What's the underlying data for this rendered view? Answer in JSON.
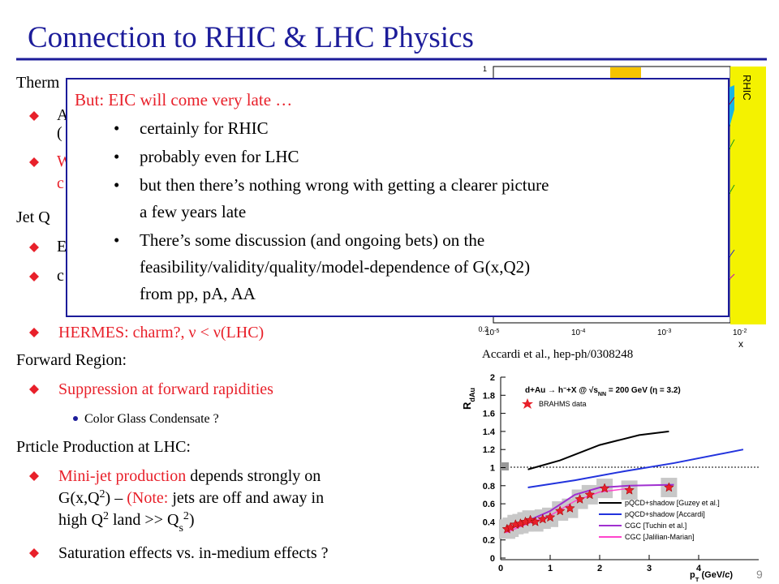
{
  "title": "Connection to RHIC & LHC Physics",
  "body": {
    "heading1": "Therm",
    "b1": "A",
    "b1c": "(",
    "b2": "W",
    "b2c": "c",
    "heading2": "Jet Q",
    "b3": "E",
    "b4": "c",
    "b5": "HERMES: charm?, ν < ν(LHC)",
    "heading3": "Forward Region:",
    "b6": "Suppression at forward rapidities",
    "b6a": "Color Glass Condensate ?",
    "heading4": "Prticle Production at LHC:",
    "b7_line1": [
      "Mini-jet production",
      " depends strongly on"
    ],
    "b7_line2": [
      "G(x,Q",
      "2",
      ") – ",
      "(Note:",
      " jets are off and away in"
    ],
    "b7_line3": [
      "high Q",
      "2",
      " land >> Q",
      "s",
      "2",
      ")"
    ],
    "b8": "Saturation effects vs. in-medium effects ?"
  },
  "callout": {
    "heading": "But: EIC will come very late …",
    "bullets": [
      [
        "certainly for RHIC"
      ],
      [
        "probably even for LHC"
      ],
      [
        "but then there’s nothing wrong with getting a clearer picture",
        "a few years late"
      ],
      [
        "There’s some discussion (and ongoing bets) on the",
        "feasibility/validity/quality/model-dependence of  G(x,Q2)",
        "from pp, pA, AA"
      ]
    ]
  },
  "top_figure": {
    "band_label": "RHIC",
    "y_labels": [
      "1",
      "0.3"
    ],
    "x_labels": [
      [
        "10",
        "-5"
      ],
      [
        "10",
        "-4"
      ],
      [
        "10",
        "-3"
      ],
      [
        "10",
        "-2"
      ]
    ],
    "x_axis_label": "x",
    "caption": "Accardi et al., hep-ph/0308248"
  },
  "bottom_figure": {
    "y_axis_label": [
      "R",
      "dAu"
    ],
    "title": [
      "d+Au → h",
      "−",
      "+X @ √s",
      "NN",
      " = 200 GeV (η = 3.2)"
    ],
    "legend_top": "BRAHMS data",
    "legend": [
      "pQCD+shadow [Guzey et al.]",
      "pQCD+shadow [Accardi]",
      "CGC [Tuchin et al.]",
      "CGC [Jalilian-Marian]"
    ],
    "yticks": [
      "2",
      "1.8",
      "1.6",
      "1.4",
      "1.2",
      "1",
      "0.8",
      "0.6",
      "0.4",
      "0.2",
      "0"
    ],
    "xticks": [
      "0",
      "1",
      "2",
      "3",
      "4"
    ],
    "x_axis_label": [
      "p",
      "T",
      " (GeV/",
      "c",
      ")"
    ]
  },
  "page_number": "9"
}
